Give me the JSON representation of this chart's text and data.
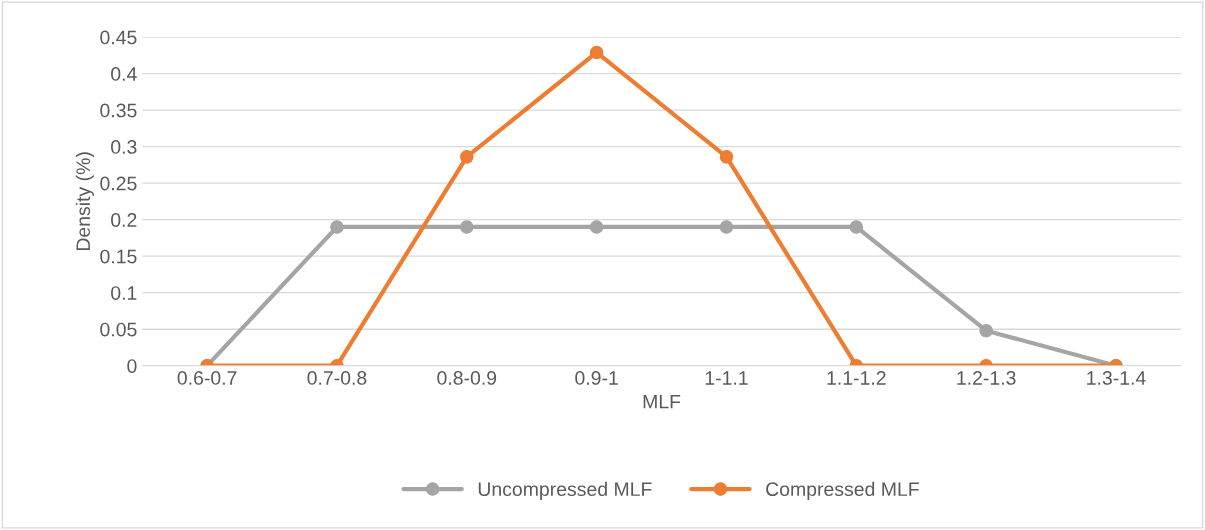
{
  "chart_data": {
    "type": "line",
    "xlabel": "MLF",
    "ylabel": "Density (%)",
    "categories": [
      "0.6-0.7",
      "0.7-0.8",
      "0.8-0.9",
      "0.9-1",
      "1-1.1",
      "1.1-1.2",
      "1.2-1.3",
      "1.3-1.4"
    ],
    "series": [
      {
        "name": "Uncompressed MLF",
        "color": "#a5a5a5",
        "values": [
          0,
          0.19,
          0.19,
          0.19,
          0.19,
          0.19,
          0.048,
          0
        ]
      },
      {
        "name": "Compressed MLF",
        "color": "#ed7d31",
        "values": [
          0,
          0,
          0.286,
          0.429,
          0.286,
          0,
          0,
          0
        ]
      }
    ],
    "ylim": [
      0,
      0.45
    ],
    "yticks": [
      0,
      0.05,
      0.1,
      0.15,
      0.2,
      0.25,
      0.3,
      0.35,
      0.4,
      0.45
    ],
    "grid": "y",
    "legend": "bottom",
    "marker": "circle",
    "line_style": "solid"
  }
}
